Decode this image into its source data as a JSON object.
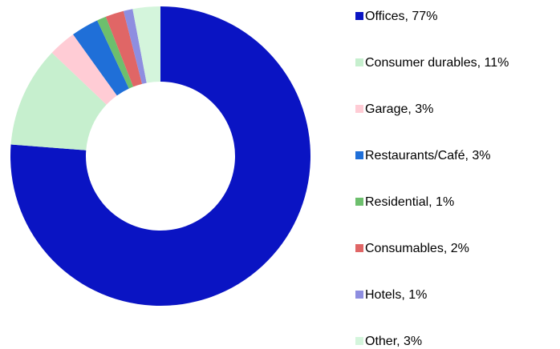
{
  "chart_data": {
    "type": "donut",
    "categories": [
      "Offices, 77%",
      "Consumer durables, 11%",
      "Garage, 3%",
      "Restaurants/Café, 3%",
      "Residential, 1%",
      "Consumables, 2%",
      "Hotels, 1%",
      "Other, 3%"
    ],
    "values": [
      77,
      11,
      3,
      3,
      1,
      2,
      1,
      3
    ],
    "colors": [
      "#0a14c3",
      "#c6efce",
      "#ffccd5",
      "#1f6fd8",
      "#6dbf6d",
      "#e06666",
      "#8e8ee0",
      "#d4f5dc"
    ],
    "legend": "right"
  }
}
